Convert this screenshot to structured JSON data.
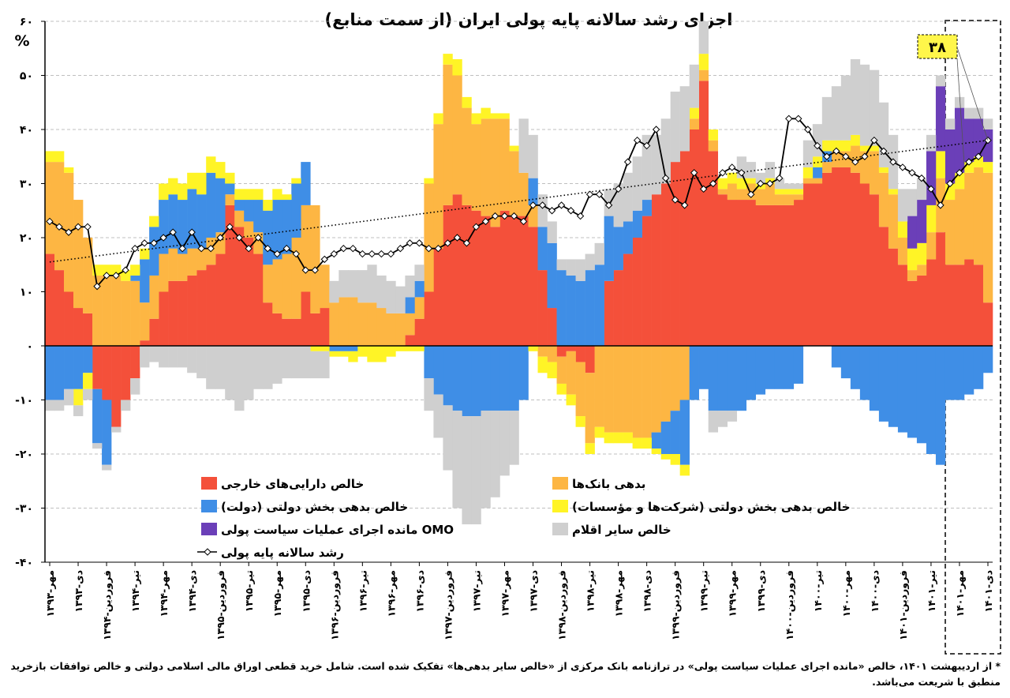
{
  "chart_data": {
    "type": "bar",
    "title": "اجزای رشد سالانه پایه پولی ایران (از سمت منابع)",
    "y_label": "%",
    "annotation": "۳۸",
    "footnote": "* از اردیبهشت ۱۴۰۱، خالص «مانده اجرای عملیات سیاست پولی» در ترازنامه بانک مرکزی از «خالص سایر بدهی‌ها» تفکیک شده است. شامل خرید قطعی اوراق مالی اسلامی دولتی و خالص توافقات بازخرید منطبق با شریعت می‌باشد.",
    "ylim": [
      -40,
      60
    ],
    "yticks": [
      {
        "value": 60,
        "label": "۶۰"
      },
      {
        "value": 50,
        "label": "۵۰"
      },
      {
        "value": 40,
        "label": "۴۰"
      },
      {
        "value": 30,
        "label": "۳۰"
      },
      {
        "value": 20,
        "label": "۲۰"
      },
      {
        "value": 10,
        "label": "۱۰"
      },
      {
        "value": 0,
        "label": "۰"
      },
      {
        "value": -10,
        "label": "-۱۰"
      },
      {
        "value": -20,
        "label": "-۲۰"
      },
      {
        "value": -30,
        "label": "-۳۰"
      },
      {
        "value": -40,
        "label": "-۴۰"
      }
    ],
    "grid": true,
    "categories": [
      "۱۳۹۳-مهر",
      null,
      null,
      "۱۳۹۳-دی",
      null,
      null,
      "۱۳۹۴-فروردین",
      null,
      null,
      "۱۳۹۴-تیر",
      null,
      null,
      "۱۳۹۴-مهر",
      null,
      null,
      "۱۳۹۴-دی",
      null,
      null,
      "۱۳۹۵-فروردین",
      null,
      null,
      "۱۳۹۵-تیر",
      null,
      null,
      "۱۳۹۵-مهر",
      null,
      null,
      "۱۳۹۵-دی",
      null,
      null,
      "۱۳۹۶-فروردین",
      null,
      null,
      "۱۳۹۶-تیر",
      null,
      null,
      "۱۳۹۶-مهر",
      null,
      null,
      "۱۳۹۶-دی",
      null,
      null,
      "۱۳۹۷-فروردین",
      null,
      null,
      "۱۳۹۷-تیر",
      null,
      null,
      "۱۳۹۷-مهر",
      null,
      null,
      "۱۳۹۷-دی",
      null,
      null,
      "۱۳۹۸-فروردین",
      null,
      null,
      "۱۳۹۸-تیر",
      null,
      null,
      "۱۳۹۸-مهر",
      null,
      null,
      "۱۳۹۸-دی",
      null,
      null,
      "۱۳۹۹-فروردین",
      null,
      null,
      "۱۳۹۹-تیر",
      null,
      null,
      "۱۳۹۹-مهر",
      null,
      null,
      "۱۳۹۹-دی",
      null,
      null,
      "۱۴۰۰-فروردین",
      null,
      null,
      "۱۴۰۰-تیر",
      null,
      null,
      "۱۴۰۰-مهر",
      null,
      null,
      "۱۴۰۰-دی",
      null,
      null,
      "۱۴۰۱-فروردین",
      null,
      null,
      "۱۴۰۱-تیر",
      null,
      null,
      "۱۴۰۱-مهر",
      null,
      null,
      "۱۴۰۱-دی"
    ],
    "series": [
      {
        "name": "خالص دارایی‌های خارجی",
        "color": "#f4503a",
        "values": [
          17,
          14,
          10,
          7,
          6,
          -8,
          -10,
          -15,
          -10,
          -6,
          1,
          5,
          10,
          12,
          12,
          13,
          14,
          15,
          17,
          26,
          22,
          20,
          17,
          8,
          6,
          5,
          5,
          10,
          6,
          7,
          0,
          0,
          0,
          0,
          0,
          0,
          0,
          0,
          2,
          5,
          10,
          18,
          26,
          28,
          26,
          25,
          24,
          22,
          25,
          24,
          24,
          22,
          14,
          7,
          -2,
          -1,
          -3,
          -5,
          0,
          12,
          14,
          17,
          20,
          24,
          28,
          30,
          34,
          36,
          40,
          49,
          36,
          28,
          27,
          27,
          27,
          26,
          26,
          26,
          26,
          27,
          30,
          30,
          32,
          33,
          33,
          32,
          30,
          28,
          22,
          18,
          15,
          12,
          13,
          16,
          21,
          15,
          15,
          16,
          15,
          8
        ]
      },
      {
        "name": "بدهی بانک‌ها",
        "color": "#fdb643",
        "values": [
          17,
          20,
          22,
          20,
          14,
          13,
          13,
          13,
          12,
          12,
          7,
          8,
          7,
          6,
          5,
          5,
          4,
          5,
          4,
          2,
          3,
          3,
          4,
          7,
          10,
          12,
          15,
          16,
          20,
          8,
          8,
          9,
          9,
          8,
          8,
          7,
          6,
          6,
          4,
          4,
          20,
          23,
          26,
          22,
          18,
          16,
          18,
          20,
          17,
          12,
          8,
          4,
          -2,
          -3,
          -5,
          -8,
          -10,
          -13,
          -15,
          -16,
          -16,
          -16,
          -17,
          -17,
          -16,
          -14,
          -12,
          -10,
          2,
          2,
          2,
          1,
          3,
          2,
          3,
          3,
          4,
          2,
          2,
          1,
          1,
          1,
          2,
          3,
          3,
          5,
          6,
          8,
          10,
          10,
          5,
          2,
          2,
          5,
          10,
          12,
          14,
          16,
          18,
          24
        ]
      },
      {
        "name": "خالص بدهی بخش دولتی (دولت)",
        "color": "#3f8ee6",
        "values": [
          -10,
          -10,
          -8,
          -8,
          -5,
          -10,
          -12,
          0,
          0,
          1,
          8,
          9,
          10,
          10,
          10,
          11,
          10,
          12,
          10,
          2,
          2,
          4,
          6,
          10,
          11,
          10,
          10,
          8,
          0,
          0,
          -1,
          -1,
          -1,
          0,
          0,
          0,
          0,
          0,
          3,
          3,
          -6,
          -9,
          -11,
          -12,
          -13,
          -13,
          -12,
          -12,
          -12,
          -12,
          -10,
          5,
          8,
          12,
          14,
          13,
          12,
          14,
          15,
          12,
          8,
          6,
          5,
          3,
          -3,
          -6,
          -8,
          -12,
          -10,
          -8,
          -12,
          -12,
          -12,
          -12,
          -10,
          -9,
          -8,
          -8,
          -8,
          -7,
          0,
          2,
          2,
          -4,
          -6,
          -8,
          -10,
          -12,
          -14,
          -15,
          -16,
          -17,
          -18,
          -20,
          -22,
          -10,
          -10,
          -9,
          -8,
          -5
        ]
      },
      {
        "name": "خالص بدهی بخش دولتی (شرکت‌ها و مؤسسات)",
        "color": "#fff426",
        "values": [
          2,
          2,
          1,
          -3,
          -3,
          2,
          2,
          2,
          2,
          2,
          2,
          2,
          3,
          3,
          3,
          3,
          4,
          3,
          3,
          2,
          2,
          2,
          2,
          2,
          2,
          1,
          1,
          0,
          -1,
          -1,
          -1,
          -1,
          -2,
          -2,
          -3,
          -3,
          -2,
          -1,
          -1,
          -1,
          1,
          2,
          2,
          3,
          2,
          2,
          2,
          1,
          1,
          1,
          0,
          -1,
          -3,
          -3,
          -2,
          -2,
          -2,
          -2,
          -2,
          -2,
          -2,
          -2,
          -2,
          -2,
          -1,
          -1,
          -2,
          -2,
          2,
          3,
          2,
          2,
          2,
          2,
          1,
          1,
          1,
          1,
          1,
          1,
          2,
          2,
          2,
          2,
          2,
          2,
          1,
          1,
          1,
          1,
          3,
          4,
          4,
          5,
          5,
          3,
          3,
          2,
          2,
          2
        ]
      },
      {
        "name": "مانده اجرای عملیات سیاست پولی OMO",
        "color": "#6b3fb8",
        "values": [
          null,
          null,
          null,
          null,
          null,
          null,
          null,
          null,
          null,
          null,
          null,
          null,
          null,
          null,
          null,
          null,
          null,
          null,
          null,
          null,
          null,
          null,
          null,
          null,
          null,
          null,
          null,
          null,
          null,
          null,
          null,
          null,
          null,
          null,
          null,
          null,
          null,
          null,
          null,
          null,
          null,
          null,
          null,
          null,
          null,
          null,
          null,
          null,
          null,
          null,
          null,
          null,
          null,
          null,
          null,
          null,
          null,
          null,
          null,
          null,
          null,
          null,
          null,
          null,
          null,
          null,
          null,
          null,
          null,
          null,
          null,
          null,
          null,
          null,
          null,
          null,
          null,
          null,
          null,
          null,
          null,
          null,
          null,
          null,
          null,
          null,
          null,
          null,
          null,
          null,
          null,
          6,
          8,
          10,
          12,
          10,
          12,
          8,
          7,
          6
        ]
      },
      {
        "name": "خالص سایر اقلام",
        "color": "#cfcfcf",
        "values": [
          -2,
          -2,
          -3,
          -2,
          -2,
          -1,
          -1,
          -1,
          -2,
          -3,
          -4,
          -3,
          -4,
          -4,
          -4,
          -5,
          -6,
          -8,
          -8,
          -10,
          -12,
          -10,
          -8,
          -8,
          -7,
          -6,
          -6,
          -6,
          -5,
          -5,
          4,
          5,
          5,
          6,
          7,
          6,
          6,
          5,
          4,
          3,
          -6,
          -8,
          -12,
          -18,
          -20,
          -20,
          -18,
          -16,
          -12,
          -10,
          10,
          8,
          6,
          4,
          2,
          3,
          4,
          3,
          4,
          5,
          8,
          9,
          10,
          12,
          11,
          12,
          13,
          12,
          8,
          6,
          -4,
          -3,
          -2,
          4,
          3,
          2,
          3,
          2,
          1,
          1,
          5,
          6,
          8,
          10,
          12,
          14,
          15,
          14,
          12,
          10,
          6,
          5,
          4,
          3,
          2,
          2,
          2,
          2,
          2,
          2
        ]
      },
      {
        "name": "رشد سالانه پایه پولی",
        "type": "line",
        "color": "#000000",
        "values": [
          23,
          22,
          21,
          22,
          22,
          11,
          13,
          13,
          14,
          18,
          19,
          19,
          20,
          21,
          18,
          21,
          18,
          18,
          20,
          22,
          20,
          18,
          20,
          18,
          17,
          18,
          17,
          14,
          14,
          16,
          17,
          18,
          18,
          17,
          17,
          17,
          17,
          18,
          19,
          19,
          18,
          18,
          19,
          20,
          19,
          22,
          23,
          24,
          24,
          24,
          23,
          26,
          26,
          25,
          26,
          25,
          24,
          28,
          28,
          26,
          29,
          34,
          38,
          37,
          40,
          31,
          27,
          26,
          32,
          29,
          30,
          32,
          33,
          32,
          28,
          30,
          30,
          31,
          42,
          42,
          40,
          37,
          35,
          36,
          35,
          34,
          35,
          38,
          36,
          34,
          33,
          32,
          31,
          29,
          26,
          30,
          32,
          34,
          35,
          38
        ]
      }
    ],
    "trend": {
      "values": [
        15.5,
        38
      ]
    }
  }
}
